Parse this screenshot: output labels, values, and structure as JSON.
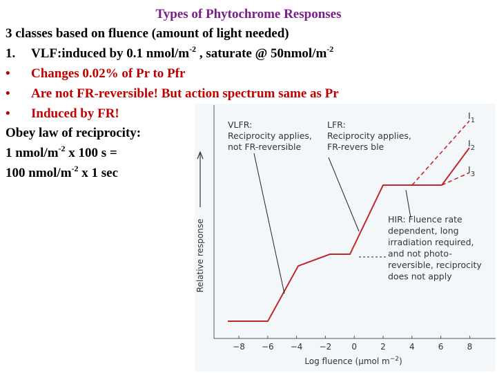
{
  "slide": {
    "title": "Types of Phytochrome Responses",
    "lines": [
      {
        "marker": null,
        "parts": [
          "3 classes based on fluence (amount of light needed)"
        ]
      },
      {
        "marker": "1.",
        "parts": [
          "VLF:induced by 0.1 nmol/m",
          "-2",
          " , saturate @  50nmol/m",
          "-2"
        ]
      },
      {
        "marker": "•",
        "parts": [
          "Changes 0.02% of Pr to Pfr"
        ]
      },
      {
        "marker": "•",
        "parts": [
          "Are not FR-reversible! But action spectrum same as Pr"
        ]
      },
      {
        "marker": "•",
        "parts": [
          "Induced by FR!"
        ]
      },
      {
        "marker": null,
        "parts": [
          "Obey law of reciprocity:"
        ]
      },
      {
        "marker": null,
        "parts": [
          "1 nmol/m",
          "-2",
          " x 100 s ="
        ]
      },
      {
        "marker": null,
        "parts": [
          "100 nmol/m",
          "-2",
          " x 1 sec"
        ]
      }
    ]
  },
  "figure": {
    "vlfr": [
      "VLFR:",
      "Reciprocity applies,",
      "not FR-reversible"
    ],
    "lfr": [
      "LFR:",
      "Reciprocity applies,",
      "FR-revers ble"
    ],
    "hir": [
      "HIR: Fluence rate",
      "dependent, long",
      "irradiation required,",
      "and not photo-",
      "reversible, reciprocity",
      "does not apply"
    ],
    "curves": [
      [
        "I",
        "1"
      ],
      [
        "I",
        "2"
      ],
      [
        "I",
        "3"
      ]
    ],
    "y_axis_label": "Relative response",
    "x_axis_label": [
      "Log fluence (μmol m",
      "−2",
      ")"
    ],
    "x_ticks": [
      "−8",
      "−6",
      "−4",
      "−2",
      "0",
      "2",
      "4",
      "6",
      "8"
    ]
  }
}
